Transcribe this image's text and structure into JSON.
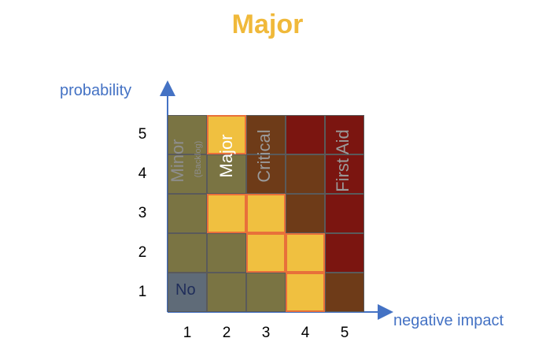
{
  "title": "Major",
  "colors": {
    "title": "#F0B93A",
    "axis": "#4472C4",
    "minor": "#7A7443",
    "major": "#F0C040",
    "critical": "#6E3B18",
    "first_aid": "#7B1510",
    "no": "#5F6B78",
    "major_border": "#E8703A"
  },
  "y_axis": {
    "label": "probability",
    "ticks": [
      "5",
      "4",
      "3",
      "2",
      "1"
    ]
  },
  "x_axis": {
    "label": "negative impact",
    "ticks": [
      "1",
      "2",
      "3",
      "4",
      "5"
    ]
  },
  "zones": {
    "minor": "Minor",
    "backlog": "(Backlog)",
    "major": "Major",
    "critical": "Critical",
    "first_aid": "First Aid",
    "no": "No"
  },
  "grid": [
    [
      "minor",
      "major",
      "critical",
      "first_aid",
      "first_aid"
    ],
    [
      "minor",
      "minor",
      "critical",
      "critical",
      "first_aid"
    ],
    [
      "minor",
      "major",
      "major",
      "critical",
      "first_aid"
    ],
    [
      "minor",
      "minor",
      "major",
      "major",
      "first_aid"
    ],
    [
      "no",
      "minor",
      "minor",
      "major",
      "critical"
    ]
  ]
}
